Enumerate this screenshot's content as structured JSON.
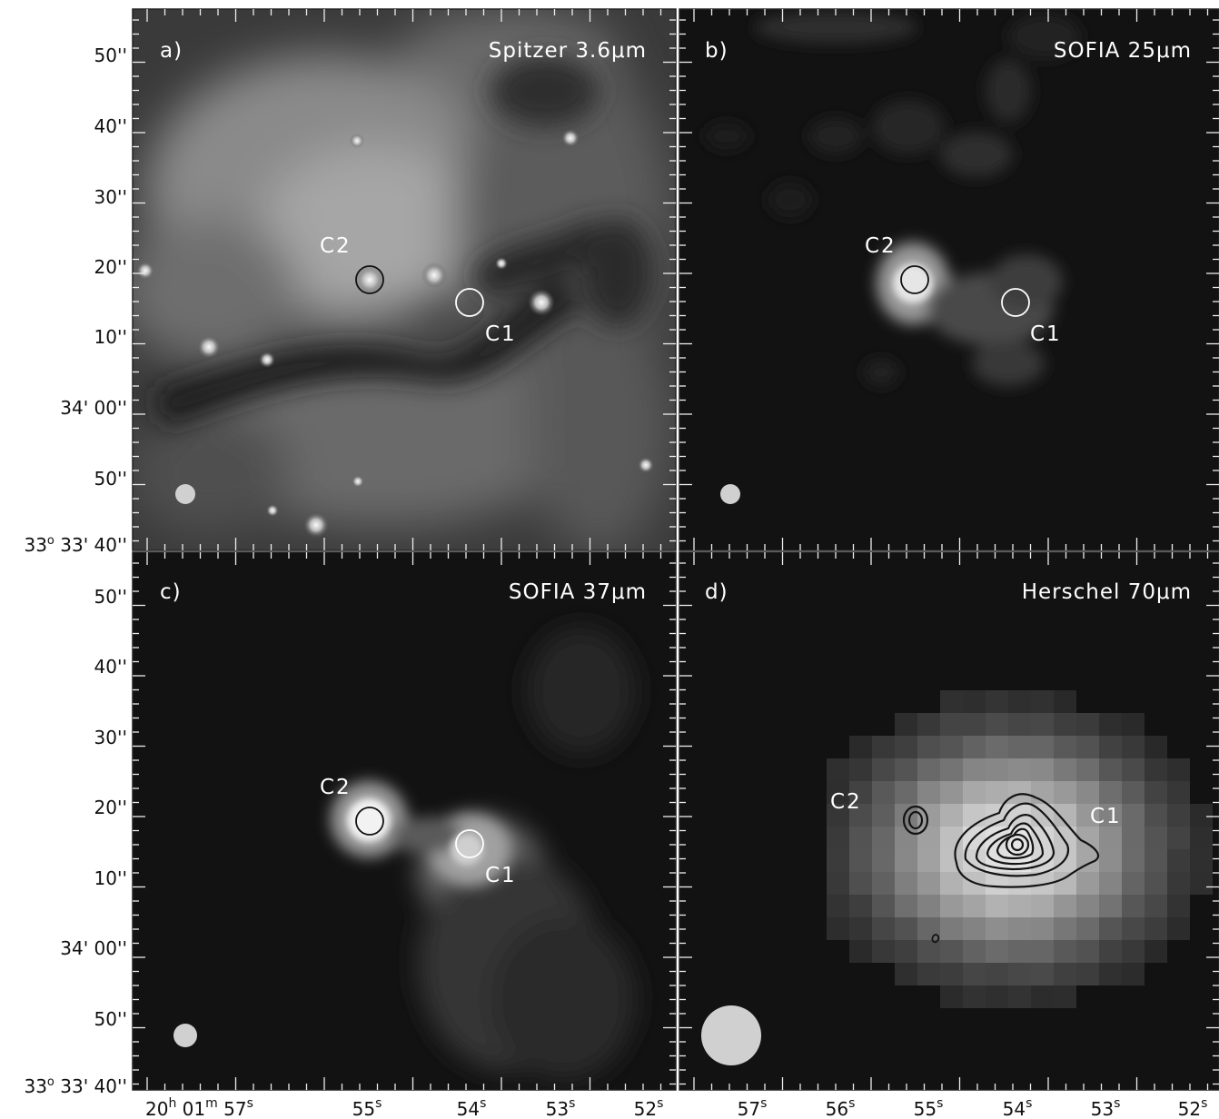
{
  "panels": {
    "a": {
      "tag": "a)",
      "title": "Spitzer 3.6μm",
      "labels": {
        "c1": "C1",
        "c2": "C2"
      }
    },
    "b": {
      "tag": "b)",
      "title": "SOFIA 25μm",
      "labels": {
        "c1": "C1",
        "c2": "C2"
      }
    },
    "c": {
      "tag": "c)",
      "title": "SOFIA 37μm",
      "labels": {
        "c1": "C1",
        "c2": "C2"
      }
    },
    "d": {
      "tag": "d)",
      "title": "Herschel 70μm",
      "labels": {
        "c1": "C1",
        "c2": "C2"
      }
    }
  },
  "y_axis": {
    "tick_labels": [
      "50''",
      "40''",
      "30''",
      "20''",
      "10''",
      "34' 00''",
      "50''"
    ],
    "base_label": {
      "deg": "33",
      "deg_sup": "o",
      "rest": " 33' 40''"
    }
  },
  "x_axis": {
    "left_first": {
      "h": "20",
      "h_sup": "h",
      "m": " 01",
      "m_sup": "m",
      "s": " 57",
      "s_sup": "s"
    },
    "left_ticks": [
      {
        "v": "55",
        "sup": "s"
      },
      {
        "v": "54",
        "sup": "s"
      },
      {
        "v": "53",
        "sup": "s"
      },
      {
        "v": "52",
        "sup": "s"
      }
    ],
    "right_ticks": [
      {
        "v": "57",
        "sup": "s"
      },
      {
        "v": "56",
        "sup": "s"
      },
      {
        "v": "55",
        "sup": "s"
      },
      {
        "v": "54",
        "sup": "s"
      },
      {
        "v": "53",
        "sup": "s"
      },
      {
        "v": "52",
        "sup": "s"
      }
    ]
  }
}
